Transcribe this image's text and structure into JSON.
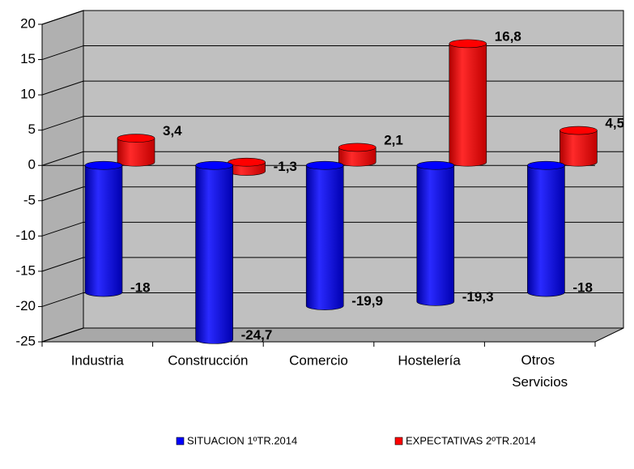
{
  "chart_data": {
    "type": "bar3d",
    "categories": [
      "Industria",
      "Construcción",
      "Comercio",
      "Hostelería",
      "Otros Servicios"
    ],
    "series": [
      {
        "name": "SITUACION 1ºTR.2014",
        "color": "#0000ff",
        "label_color": "#1a1a80",
        "values": [
          -18,
          -24.7,
          -19.9,
          -19.3,
          -18
        ],
        "value_labels": [
          "-18",
          "-24,7",
          "-19,9",
          "-19,3",
          "-18"
        ]
      },
      {
        "name": "EXPECTATIVAS 2ºTR.2014",
        "color": "#ff0000",
        "label_color": "#800000",
        "values": [
          3.4,
          -1.3,
          2.1,
          16.8,
          4.5
        ],
        "value_labels": [
          "3,4",
          "-1,3",
          "2,1",
          "16,8",
          "4,5"
        ]
      }
    ],
    "ylim": [
      -25,
      20
    ],
    "yticks": [
      -25,
      -20,
      -15,
      -10,
      -5,
      0,
      5,
      10,
      15,
      20
    ],
    "grid": true
  }
}
